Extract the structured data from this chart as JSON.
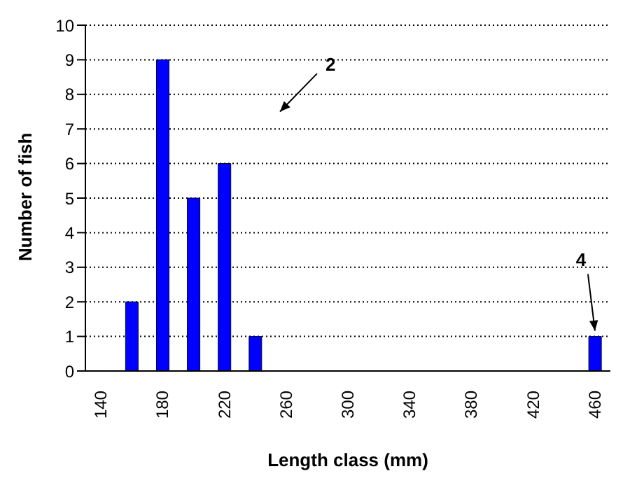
{
  "chart_data": {
    "type": "bar",
    "xlabel": "Length class (mm)",
    "ylabel": "Number of fish",
    "categories": [
      "140",
      null,
      "180",
      null,
      "220",
      null,
      "260",
      null,
      "300",
      null,
      "340",
      null,
      "380",
      null,
      "420",
      null,
      "460"
    ],
    "values": [
      0,
      2,
      9,
      5,
      6,
      1,
      0,
      0,
      0,
      0,
      0,
      0,
      0,
      0,
      0,
      0,
      1
    ],
    "color": "#0000ff",
    "ylim": [
      0,
      10
    ],
    "yticks": [
      0,
      1,
      2,
      3,
      4,
      5,
      6,
      7,
      8,
      9,
      10
    ],
    "grid": "y",
    "annotations": [
      "2",
      {
        "text": "4",
        "x": "460",
        "y": 1
      }
    ]
  }
}
